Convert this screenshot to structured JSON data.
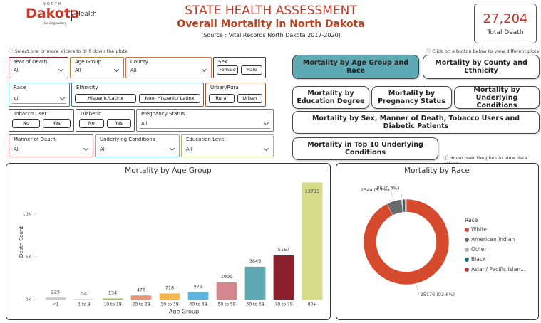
{
  "header": {
    "logo": {
      "north": "NORTH",
      "brand": "Dakota",
      "health": "Health",
      "tagline": "Be Legendary."
    },
    "title": "STATE HEALTH ASSESSMENT",
    "subtitle": "Overall Mortality in North Dakota",
    "source": "(Source : Vital Records North Dakota 2017-2020)"
  },
  "kpi": {
    "value": "27,204",
    "label": "Total Death"
  },
  "hints": {
    "slicers": "ⓘ Select one or more slicers to drill down the plots",
    "buttons": "ⓘ Click on a button below to view different plots",
    "hover": "ⓘ Hover over the plots to view data values"
  },
  "slicers": [
    {
      "label": "Year of Death",
      "value": "All"
    },
    {
      "label": "Age Group",
      "value": "All"
    },
    {
      "label": "County",
      "value": "All"
    },
    {
      "label": "Sex",
      "options": [
        "Female",
        "Male"
      ]
    },
    {
      "label": "Race",
      "value": "All"
    },
    {
      "label": "Ethnicity",
      "options": [
        "Hispanic/Latinx",
        "Non- Hispanic/ Latinx"
      ]
    },
    {
      "label": "Urban/Rural",
      "options": [
        "Rural",
        "Urban"
      ]
    },
    {
      "label": "Tobacco User",
      "options": [
        "No",
        "Yes"
      ]
    },
    {
      "label": "Diabetic",
      "options": [
        "No",
        "Yes"
      ]
    },
    {
      "label": "Pregnancy Status",
      "value": "All"
    },
    {
      "label": "Manner of Death",
      "value": "All"
    },
    {
      "label": "Underlying Conditions",
      "value": "All"
    },
    {
      "label": "Education Level",
      "value": "All"
    }
  ],
  "buttons": [
    {
      "label": "Mortality by Age Group and Race",
      "active": true
    },
    {
      "label": "Mortality by County and Ethnicity",
      "active": false
    },
    {
      "label": "Mortality by Education Degree",
      "active": false
    },
    {
      "label": "Mortality by Pregnancy Status",
      "active": false
    },
    {
      "label": "Mortality by Underlying Conditions",
      "active": false
    },
    {
      "label": "Mortality by Sex, Manner of Death, Tobacco Users and Diabetic Patients",
      "active": false
    },
    {
      "label": "Mortality in Top 10 Underlying Conditions",
      "active": false
    }
  ],
  "chart_data": [
    {
      "type": "bar",
      "title": "Mortality by Age Group",
      "x_label": "Age Group",
      "y_label": "Death Count",
      "categories": [
        "<1",
        "1 to 9",
        "10 to 19",
        "20 to 29",
        "30 to 39",
        "40 to 49",
        "50 to 59",
        "60 to 69",
        "70 to 79",
        "80+"
      ],
      "values": [
        225,
        54,
        134,
        478,
        718,
        871,
        1999,
        3845,
        5167,
        13713
      ],
      "colors": [
        "#c9c9c9",
        "#c2c8cc",
        "#9fc56a",
        "#e8967a",
        "#f5b84e",
        "#5bb5e0",
        "#d4878c",
        "#5ea9b4",
        "#8b1f2c",
        "#d4dc8a"
      ],
      "ylim": [
        0,
        14500
      ],
      "yticks": [
        {
          "value": 0,
          "label": "0K"
        },
        {
          "value": 5000,
          "label": "5K"
        },
        {
          "value": 10000,
          "label": "10K"
        }
      ],
      "grid": false
    },
    {
      "type": "pie",
      "title": "Mortality by Race",
      "legend_title": "Race",
      "categories": [
        "White",
        "American Indian",
        "Other",
        "Black",
        "Asian/ Pacific Islan..."
      ],
      "values": [
        25176,
        1544,
        86,
        262,
        136
      ],
      "value_labels": [
        "25176 (92.6%)",
        "1544 (5.7%)",
        "86 (0.3%)",
        null,
        null
      ],
      "colors": [
        "#d64a2d",
        "#6b6b6b",
        "#b0b0b0",
        "#1f6f7f",
        "#c7372f"
      ],
      "donut": true
    }
  ]
}
